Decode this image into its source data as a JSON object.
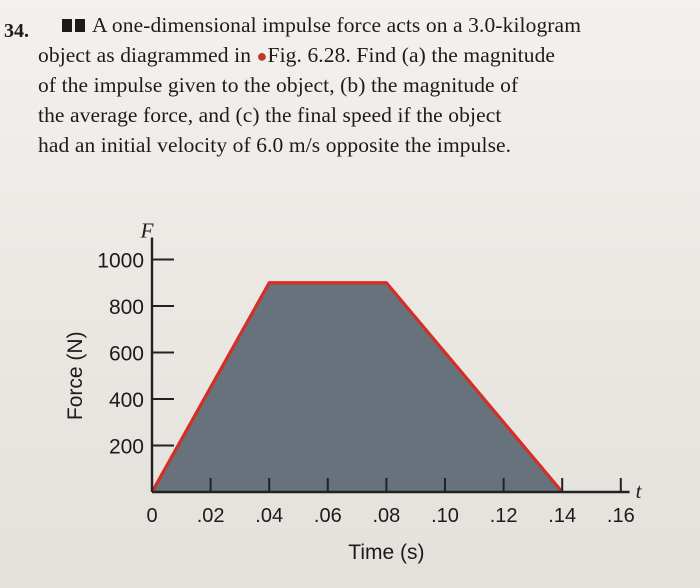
{
  "problem": {
    "number": "34.",
    "difficulty_icon": "double-square-difficulty-icon",
    "lines": [
      "A one-dimensional impulse force acts on a 3.0-kilogram",
      "object as diagrammed in",
      "Fig. 6.28. Find (a) the magnitude",
      "of the impulse given to the object, (b) the magnitude of",
      "the average force, and (c) the final speed if the object",
      "had an initial velocity of 6.0 m/s opposite the impulse."
    ]
  },
  "chart_data": {
    "type": "area",
    "x": [
      0,
      0.04,
      0.08,
      0.14
    ],
    "y": [
      0,
      900,
      900,
      0
    ],
    "xlabel": "Time (s)",
    "ylabel": "Force (N)",
    "x_axis_symbol": "t",
    "y_axis_symbol": "F",
    "x_ticks": [
      "0",
      ".02",
      ".04",
      ".06",
      ".08",
      ".10",
      ".12",
      ".14",
      ".16"
    ],
    "y_ticks": [
      "1000",
      "800",
      "600",
      "400",
      "200"
    ],
    "xlim": [
      0,
      0.16
    ],
    "ylim": [
      0,
      1000
    ],
    "fill_color": "#67727d",
    "line_color": "#d42f25"
  }
}
